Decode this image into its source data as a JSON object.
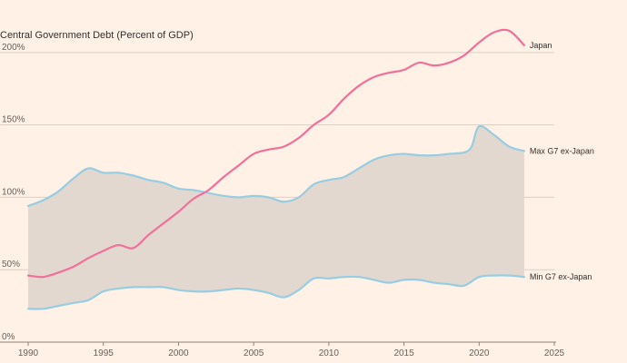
{
  "chart_data": {
    "type": "area",
    "title": "Central Government Debt (Percent of GDP)",
    "xlim": [
      1990,
      2025
    ],
    "ylim": [
      0,
      230
    ],
    "x_ticks": [
      1990,
      1995,
      2000,
      2005,
      2010,
      2015,
      2020,
      2025
    ],
    "y_ticks": [
      0,
      50,
      100,
      150,
      200
    ],
    "y_tick_labels": [
      "0%",
      "50%",
      "100%",
      "150%",
      "200%"
    ],
    "grid": "horizontal",
    "band": {
      "upper": "Max G7 ex-Japan",
      "lower": "Min G7 ex-Japan",
      "fill_color": "#e3d8cf"
    },
    "series": [
      {
        "name": "Japan",
        "color": "#f0709b",
        "x": [
          1990,
          1991,
          1992,
          1993,
          1994,
          1995,
          1996,
          1997,
          1998,
          1999,
          2000,
          2001,
          2002,
          2003,
          2004,
          2005,
          2006,
          2007,
          2008,
          2009,
          2010,
          2011,
          2012,
          2013,
          2014,
          2015,
          2016,
          2017,
          2018,
          2019,
          2020,
          2021,
          2022,
          2023
        ],
        "y": [
          46,
          45,
          48,
          52,
          58,
          63,
          67,
          65,
          74,
          82,
          90,
          99,
          105,
          114,
          122,
          130,
          133,
          135,
          141,
          150,
          157,
          168,
          177,
          183,
          186,
          188,
          193,
          191,
          193,
          198,
          207,
          214,
          215,
          205
        ]
      },
      {
        "name": "Max G7 ex-Japan",
        "color": "#96cde3",
        "x": [
          1990,
          1991,
          1992,
          1993,
          1994,
          1995,
          1996,
          1997,
          1998,
          1999,
          2000,
          2001,
          2002,
          2003,
          2004,
          2005,
          2006,
          2007,
          2008,
          2009,
          2010,
          2011,
          2012,
          2013,
          2014,
          2015,
          2016,
          2017,
          2018,
          2019,
          2019.5,
          2020,
          2021,
          2022,
          2023
        ],
        "y": [
          94,
          98,
          104,
          113,
          120,
          117,
          117,
          115,
          112,
          110,
          106,
          105,
          103,
          101,
          100,
          101,
          100,
          97,
          100,
          109,
          112,
          114,
          120,
          126,
          129,
          130,
          129,
          129,
          130,
          131,
          135,
          149,
          143,
          135,
          132
        ]
      },
      {
        "name": "Min G7 ex-Japan",
        "color": "#96cde3",
        "x": [
          1990,
          1991,
          1992,
          1993,
          1994,
          1995,
          1996,
          1997,
          1998,
          1999,
          2000,
          2001,
          2002,
          2003,
          2004,
          2005,
          2006,
          2007,
          2008,
          2009,
          2010,
          2011,
          2012,
          2013,
          2014,
          2015,
          2016,
          2017,
          2018,
          2019,
          2020,
          2021,
          2022,
          2023
        ],
        "y": [
          23,
          23,
          25,
          27,
          29,
          35,
          37,
          38,
          38,
          38,
          36,
          35,
          35,
          36,
          37,
          36,
          34,
          31,
          36,
          44,
          44,
          45,
          45,
          43,
          41,
          43,
          43,
          41,
          40,
          39,
          45,
          46,
          46,
          45
        ]
      }
    ]
  }
}
